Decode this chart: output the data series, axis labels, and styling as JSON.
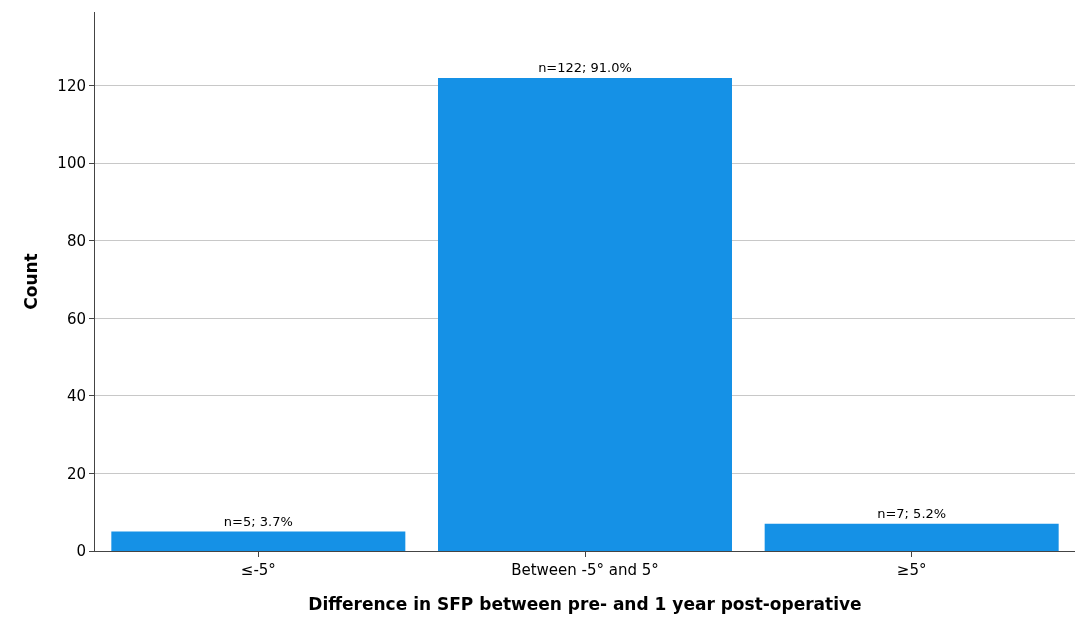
{
  "chart_data": {
    "type": "bar",
    "xlabel": "Difference in SFP between pre- and 1 year post-operative",
    "ylabel": "Count",
    "categories": [
      "≤-5°",
      "Between -5° and 5°",
      "≥5°"
    ],
    "values": [
      5,
      122,
      7
    ],
    "value_labels": [
      "n=5; 3.7%",
      "n=122; 91.0%",
      "n=7; 5.2%"
    ],
    "color": "#1591e6",
    "ylim": [
      0,
      139
    ],
    "yticks": [
      0,
      20,
      40,
      60,
      80,
      100,
      120
    ],
    "grid": "y"
  }
}
